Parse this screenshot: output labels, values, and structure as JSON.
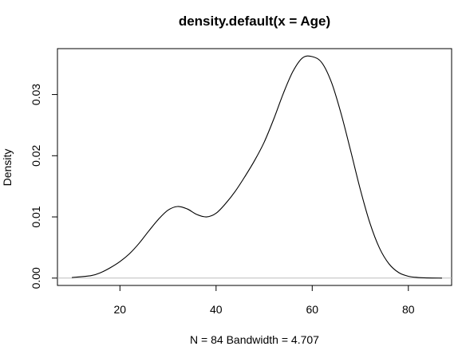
{
  "chart_data": {
    "type": "line",
    "title": "density.default(x = Age)",
    "xlabel": "N = 84   Bandwidth = 4.707",
    "ylabel": "Density",
    "xlim": [
      7,
      89
    ],
    "ylim": [
      -0.0012,
      0.0375
    ],
    "x_ticks": [
      20,
      40,
      60,
      80
    ],
    "y_ticks": [
      0.0,
      0.01,
      0.02,
      0.03
    ],
    "x_tick_labels": [
      "20",
      "40",
      "60",
      "80"
    ],
    "y_tick_labels": [
      "0.00",
      "0.01",
      "0.02",
      "0.03"
    ],
    "baseline": 0,
    "grid": false,
    "legend": "none",
    "line_color": "#000000",
    "baseline_color": "#bebebe",
    "series": [
      {
        "x": [
          10,
          14,
          16,
          18,
          20,
          22,
          24,
          26,
          28,
          30,
          32,
          34,
          36,
          38,
          40,
          42,
          44,
          46,
          48,
          50,
          52,
          54,
          56,
          58,
          60,
          62,
          64,
          66,
          68,
          70,
          72,
          74,
          76,
          78,
          80,
          82,
          84,
          87
        ],
        "y": [
          0.0001,
          0.0004,
          0.0009,
          0.0017,
          0.0027,
          0.004,
          0.0057,
          0.0077,
          0.0096,
          0.0111,
          0.0117,
          0.0113,
          0.0104,
          0.01,
          0.0106,
          0.0122,
          0.0142,
          0.0166,
          0.0192,
          0.0222,
          0.026,
          0.0302,
          0.0338,
          0.036,
          0.0362,
          0.0352,
          0.032,
          0.0269,
          0.0208,
          0.0145,
          0.009,
          0.0049,
          0.0023,
          0.0009,
          0.0003,
          0.0001,
          3e-05,
          0.0
        ]
      }
    ]
  }
}
